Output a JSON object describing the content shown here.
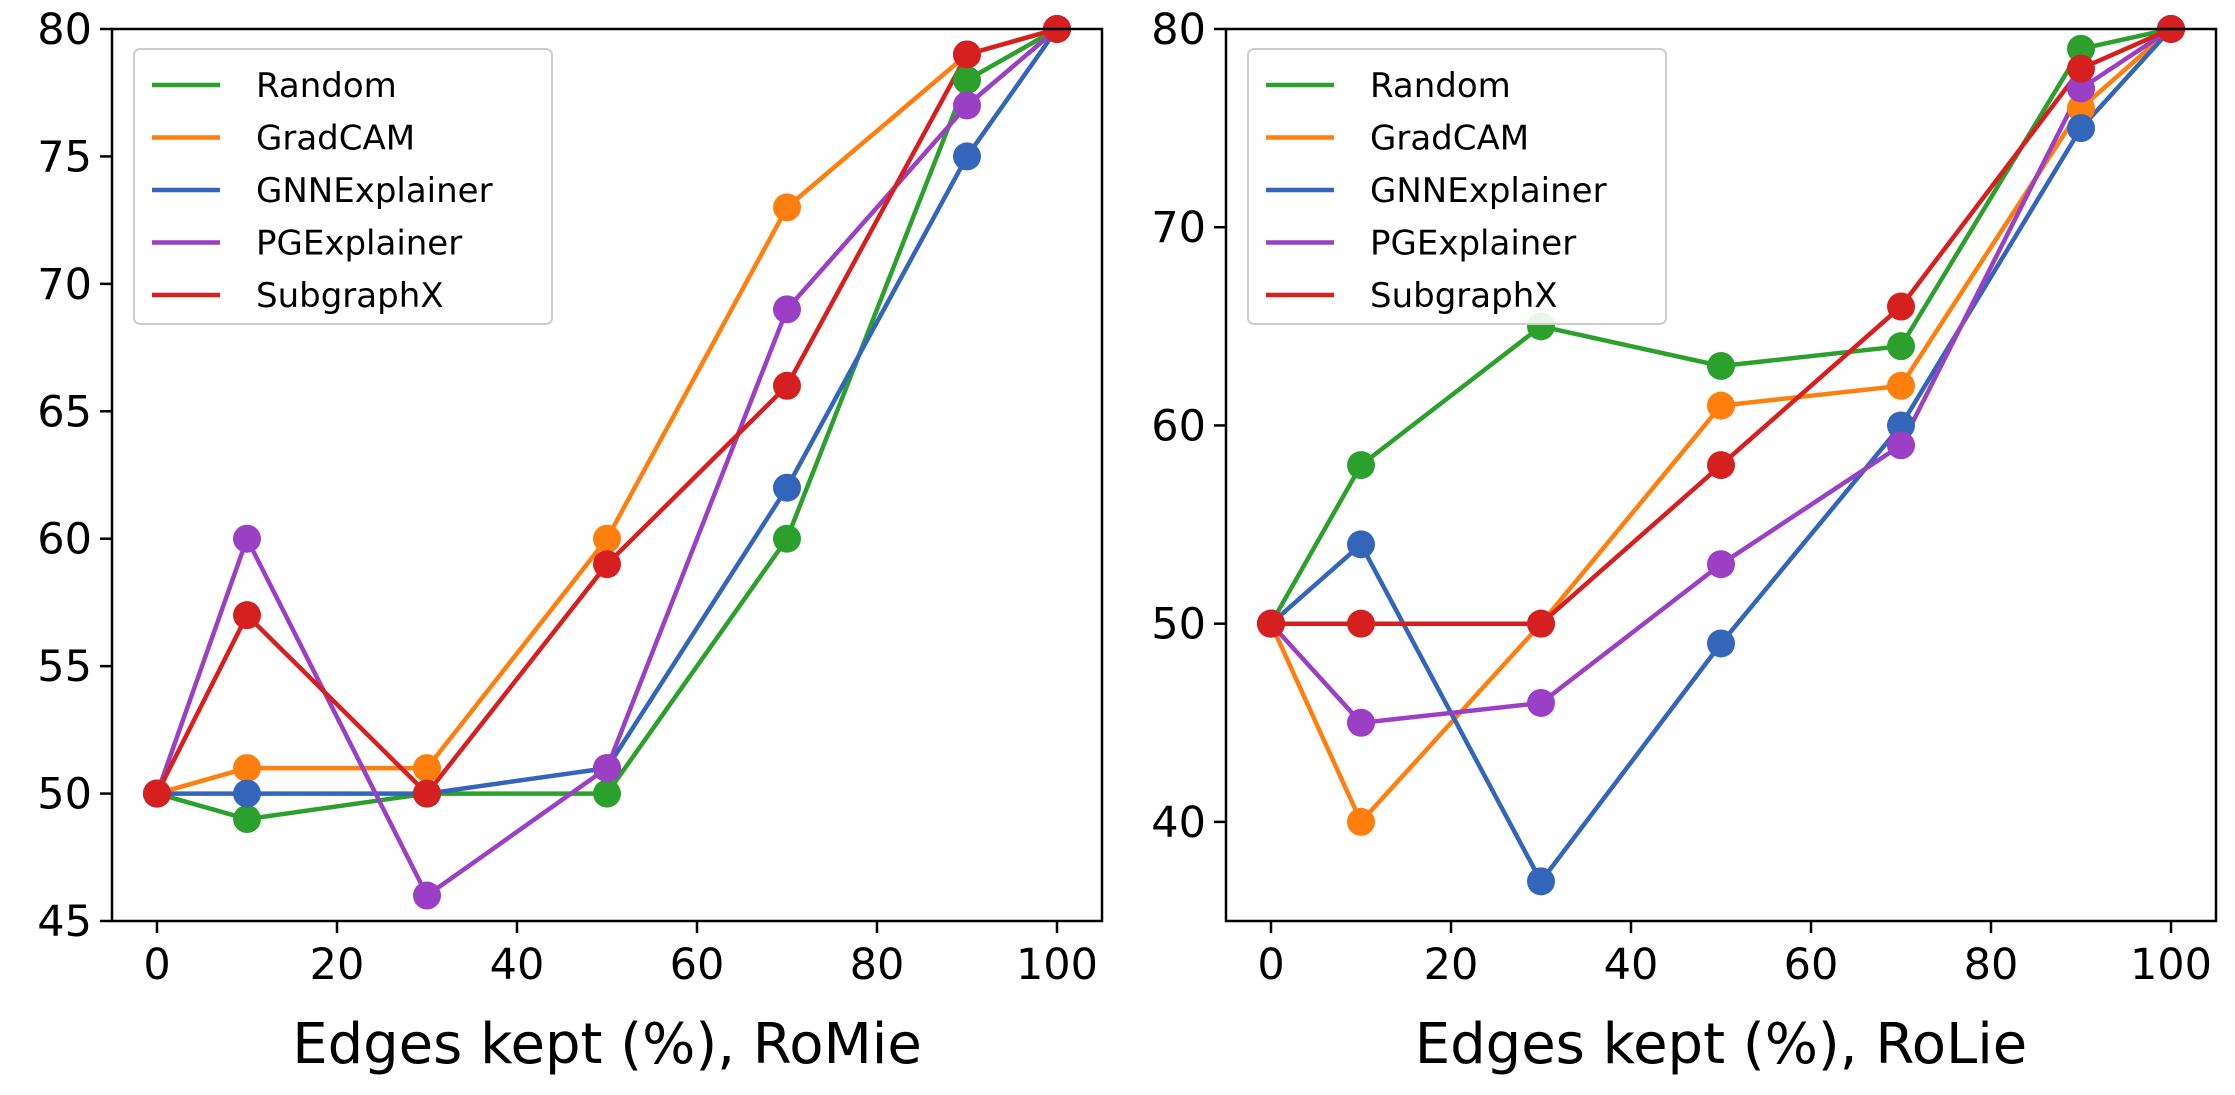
{
  "colors": {
    "Random": "#2ca02c",
    "GradCAM": "#ff7f0e",
    "GNNExplainer": "#3366bb",
    "PGExplainer": "#9b3fc4",
    "SubgraphX": "#d62020"
  },
  "chart_data": [
    {
      "type": "line",
      "title": "",
      "xlabel": "Edges kept (%), RoMie",
      "ylabel": "",
      "x": [
        0,
        10,
        30,
        50,
        70,
        90,
        100
      ],
      "xlim": [
        -5,
        105
      ],
      "ylim": [
        45,
        80
      ],
      "xticks": [
        0,
        20,
        40,
        60,
        80,
        100
      ],
      "yticks": [
        45,
        50,
        55,
        60,
        65,
        70,
        75,
        80
      ],
      "legend": "upper-left",
      "series": [
        {
          "name": "Random",
          "values": [
            50,
            49,
            50,
            50,
            60,
            78,
            80
          ]
        },
        {
          "name": "GradCAM",
          "values": [
            50,
            51,
            51,
            60,
            73,
            79,
            80
          ]
        },
        {
          "name": "GNNExplainer",
          "values": [
            50,
            50,
            50,
            51,
            62,
            75,
            80
          ]
        },
        {
          "name": "PGExplainer",
          "values": [
            50,
            60,
            46,
            51,
            69,
            77,
            80
          ]
        },
        {
          "name": "SubgraphX",
          "values": [
            50,
            57,
            50,
            59,
            66,
            79,
            80
          ]
        }
      ]
    },
    {
      "type": "line",
      "title": "",
      "xlabel": "Edges kept (%), RoLie",
      "ylabel": "",
      "x": [
        0,
        10,
        30,
        50,
        70,
        90,
        100
      ],
      "xlim": [
        -5,
        105
      ],
      "ylim": [
        35,
        80
      ],
      "xticks": [
        0,
        20,
        40,
        60,
        80,
        100
      ],
      "yticks": [
        40,
        50,
        60,
        70,
        80
      ],
      "legend": "upper-left",
      "series": [
        {
          "name": "Random",
          "values": [
            50,
            58,
            65,
            63,
            64,
            79,
            80
          ]
        },
        {
          "name": "GradCAM",
          "values": [
            50,
            40,
            50,
            61,
            62,
            76,
            80
          ]
        },
        {
          "name": "GNNExplainer",
          "values": [
            50,
            54,
            37,
            49,
            60,
            75,
            80
          ]
        },
        {
          "name": "PGExplainer",
          "values": [
            50,
            45,
            46,
            53,
            59,
            77,
            80
          ]
        },
        {
          "name": "SubgraphX",
          "values": [
            50,
            50,
            50,
            58,
            66,
            78,
            80
          ]
        }
      ]
    }
  ]
}
